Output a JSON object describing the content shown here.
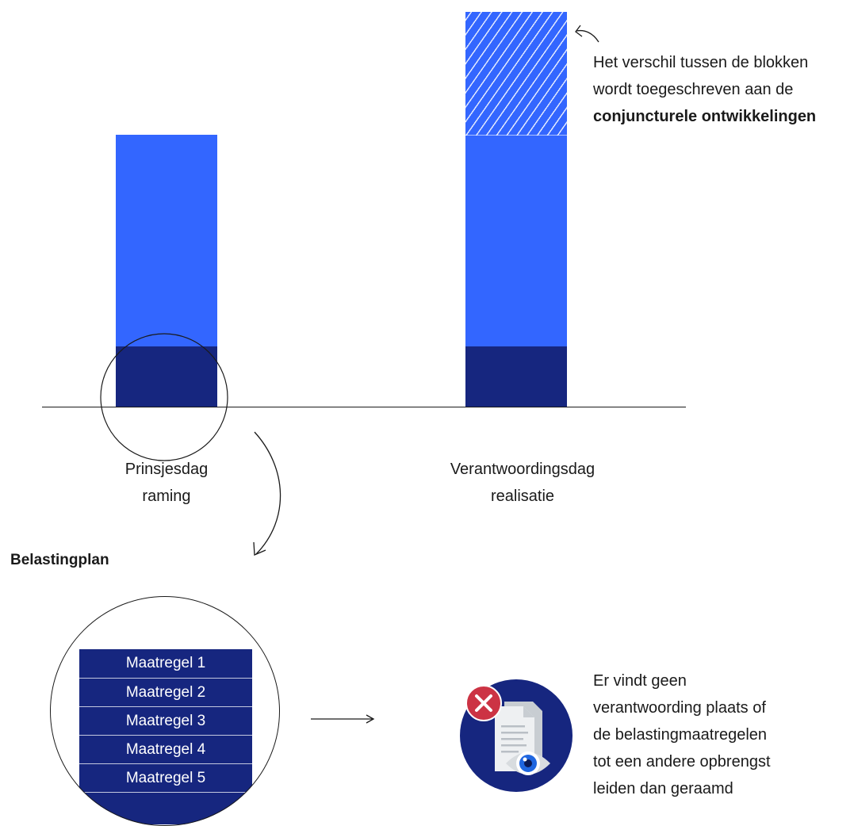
{
  "colors": {
    "bar_light": "#3366ff",
    "bar_dark": "#16267f",
    "line": "#1a1a1a",
    "error_red": "#cc3344",
    "doc_gray": "#d8dcdf"
  },
  "chart": {
    "categories": [
      {
        "line1": "Prinsjesdag",
        "line2": "raming"
      },
      {
        "line1": "Verantwoordingsdag",
        "line2": "realisatie"
      }
    ]
  },
  "annotation": {
    "line1": "Het verschil tussen de blokken",
    "line2": "wordt toegeschreven aan de",
    "bold": "conjuncturele ontwikkelingen"
  },
  "belastingplan": {
    "title": "Belastingplan",
    "measures": [
      "Maatregel 1",
      "Maatregel 2",
      "Maatregel 3",
      "Maatregel 4",
      "Maatregel 5"
    ]
  },
  "verantwoording": {
    "icon": "document-eye-error-icon",
    "lines": [
      "Er vindt geen",
      "verantwoording plaats of",
      "de belastingmaatregelen",
      "tot een andere opbrengst",
      "leiden dan geraamd"
    ]
  }
}
